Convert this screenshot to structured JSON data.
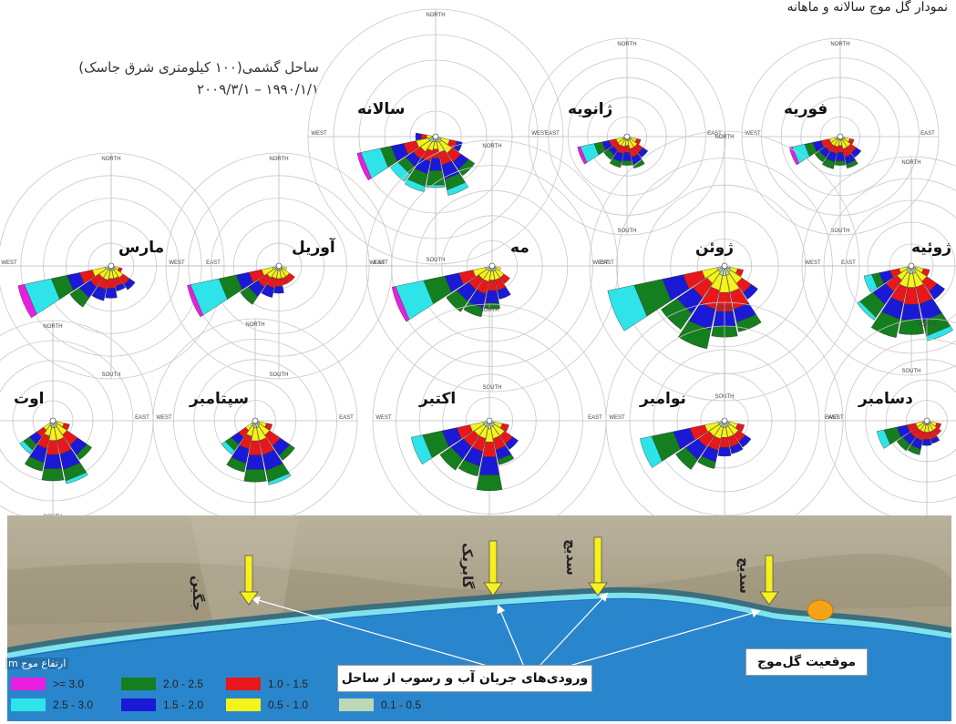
{
  "header": {
    "top_caption": "نمودار گل موج سالانه و ماهانه",
    "site_name": "ساحل گشمی(۱۰۰ کیلومتری شرق جاسک)",
    "date_range": "۱۹۹۰/۱/۱ – ۲۰۰۹/۳/۱"
  },
  "compass": {
    "north": "NORTH",
    "south": "SOUTH",
    "east": "EAST",
    "west": "WEST"
  },
  "colors": {
    ">= 3.0": "#e81ee0",
    "2.5 - 3.0": "#2ee4e8",
    "2.0 - 2.5": "#157e1e",
    "1.5 - 2.0": "#1a1ad6",
    "1.0 - 1.5": "#e8171b",
    "0.5 - 1.0": "#f4f31a",
    "0.1 - 0.5": "#bcd8b5"
  },
  "roses": [
    {
      "title": "سالانه"
    },
    {
      "title": "ژانویه"
    },
    {
      "title": "فوریه"
    },
    {
      "title": "مارس"
    },
    {
      "title": "آوریل"
    },
    {
      "title": "مه"
    },
    {
      "title": "ژوئن"
    },
    {
      "title": "ژوئیه"
    },
    {
      "title": "اوت"
    },
    {
      "title": "سپتامبر"
    },
    {
      "title": "اکتبر"
    },
    {
      "title": "نوامبر"
    },
    {
      "title": "دسامبر"
    }
  ],
  "map": {
    "rivers": [
      "جگین",
      "گابریک",
      "سدیچ",
      "سدیچ"
    ],
    "inflow_label": "ورودی‌های جریان آب و رسوب از ساحل",
    "buoy_label": "موقعیت گل‌موج"
  },
  "legend": {
    "title": "ارتفاع موج m",
    "items": [
      {
        "label": ">= 3.0",
        "color": "#e81ee0"
      },
      {
        "label": "2.0 - 2.5",
        "color": "#157e1e"
      },
      {
        "label": "1.0 - 1.5",
        "color": "#e8171b"
      },
      {
        "label": "2.5 - 3.0",
        "color": "#2ee4e8"
      },
      {
        "label": "1.5 - 2.0",
        "color": "#1a1ad6"
      },
      {
        "label": "0.5 - 1.0",
        "color": "#f4f31a"
      },
      {
        "label": "0.1 - 0.5",
        "color": "#bcd8b5"
      }
    ]
  }
}
